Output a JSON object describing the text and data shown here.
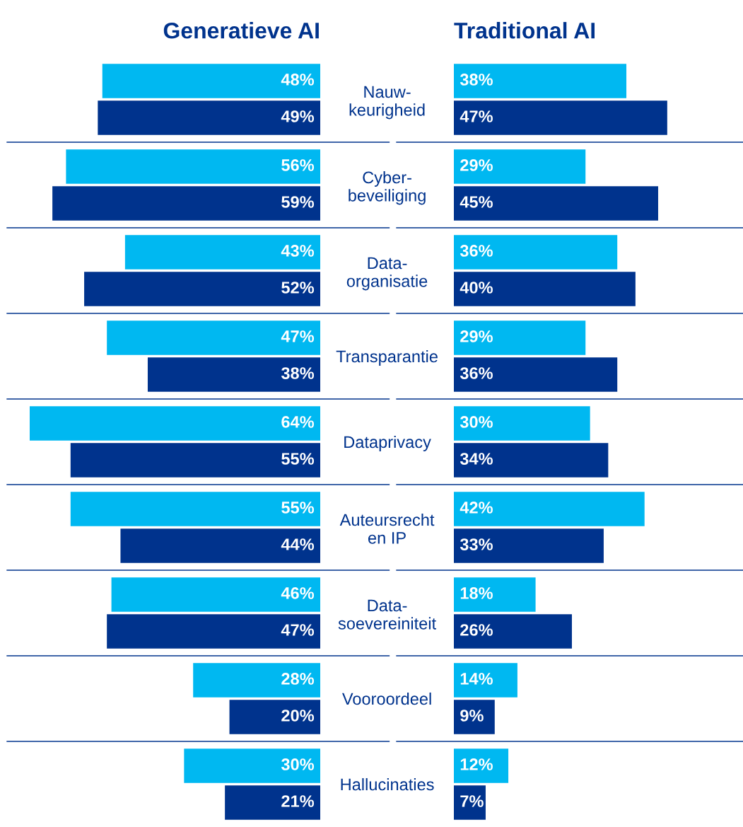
{
  "chart_data": [
    {
      "type": "bar",
      "orientation": "horizontal",
      "title": "Generatieve AI",
      "categories": [
        null,
        null,
        null,
        null,
        null,
        null,
        null,
        null,
        null
      ],
      "series": [
        {
          "color": "#00b8f1",
          "values": [
            48,
            56,
            43,
            47,
            64,
            55,
            46,
            28,
            30
          ],
          "value_labels": [
            "48%",
            "56%",
            "43%",
            "47%",
            "64%",
            "55%",
            "46%",
            "28%",
            "30%"
          ]
        },
        {
          "color": "#00338d",
          "values": [
            49,
            59,
            52,
            38,
            55,
            44,
            47,
            20,
            21
          ],
          "value_labels": [
            "49%",
            "59%",
            "52%",
            "38%",
            "55%",
            "44%",
            "47%",
            "20%",
            "21%"
          ]
        }
      ],
      "grid": "y"
    },
    {
      "type": "bar",
      "orientation": "horizontal",
      "title": "Traditional AI",
      "categories": [
        "Nauw-\nkeurigheid",
        "Cyber-\nbeveiliging",
        "Data-\norganisatie",
        "Transparantie",
        "Dataprivacy",
        "Auteursrecht\nen IP",
        "Data-\nsoevereiniteit",
        "Vooroordeel",
        "Hallucinaties"
      ],
      "series": [
        {
          "color": "#00b8f1",
          "values": [
            38,
            29,
            36,
            29,
            30,
            42,
            18,
            14,
            12
          ],
          "value_labels": [
            "38%",
            "29%",
            "36%",
            "29%",
            "30%",
            "42%",
            "18%",
            "14%",
            "12%"
          ]
        },
        {
          "color": "#00338d",
          "values": [
            47,
            45,
            40,
            36,
            34,
            33,
            26,
            9,
            7
          ],
          "value_labels": [
            "47%",
            "45%",
            "40%",
            "36%",
            "34%",
            "33%",
            "26%",
            "9%",
            "7%"
          ]
        }
      ],
      "tick_labels": "y",
      "grid": "y"
    }
  ]
}
